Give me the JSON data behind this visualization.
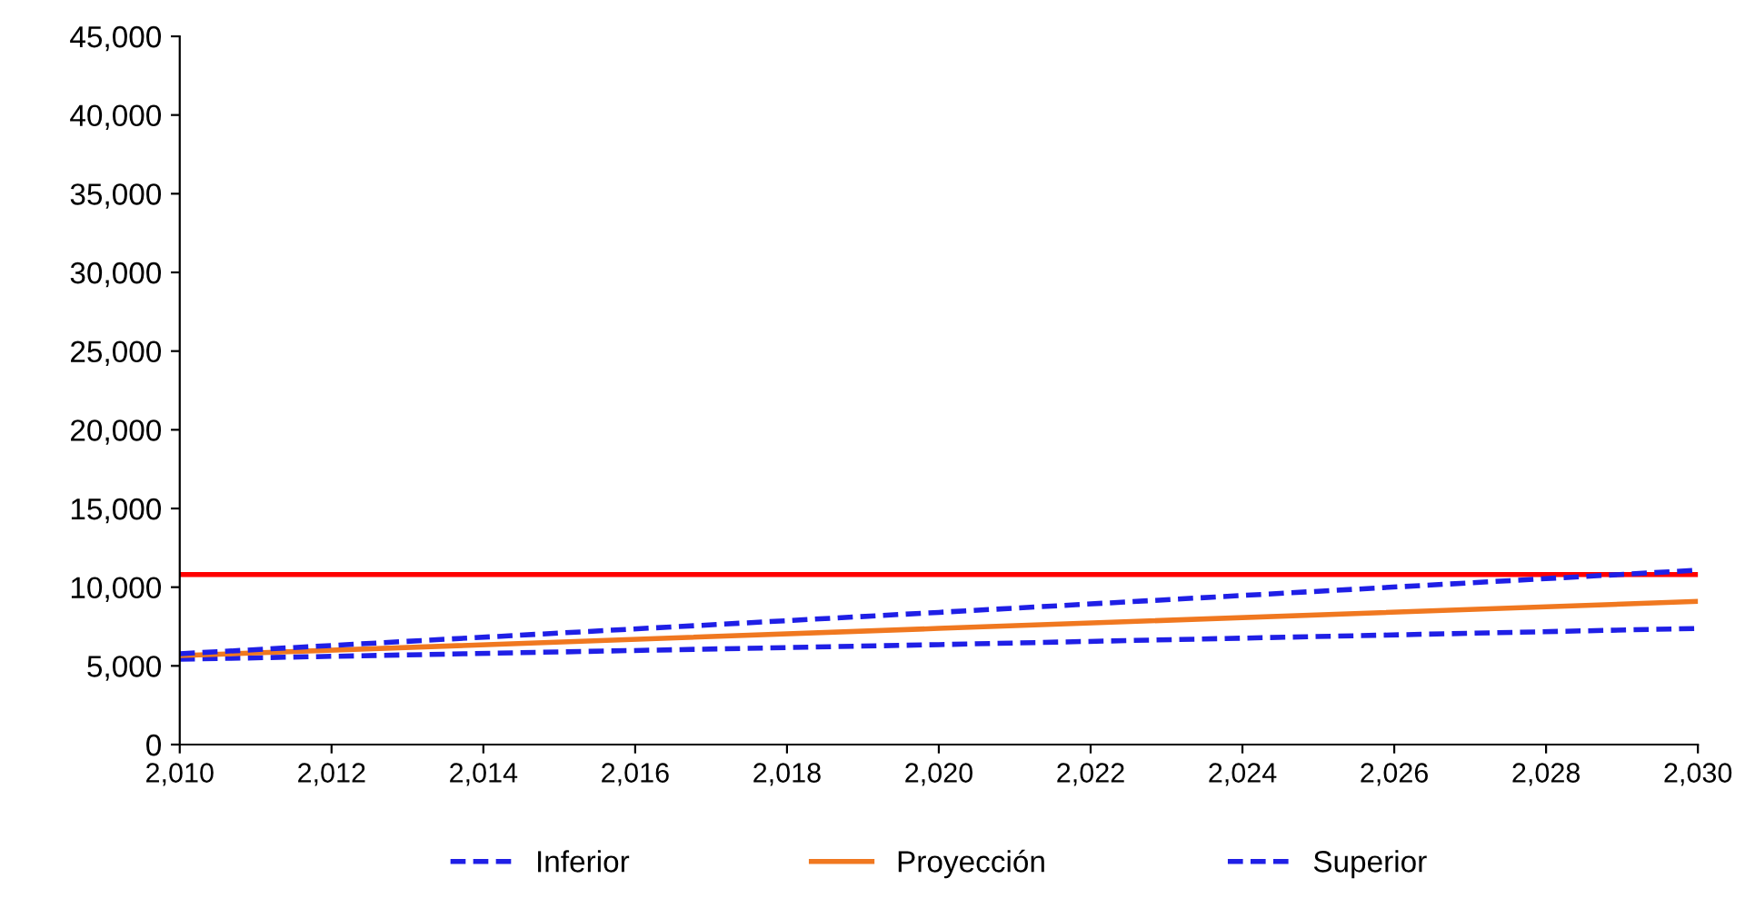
{
  "chart_data": {
    "type": "line",
    "x": [
      2010,
      2020,
      2030
    ],
    "series": [
      {
        "name": "Inferior",
        "color": "#1f1fe6",
        "line_style": "dashed",
        "values": [
          5420,
          6350,
          7380
        ]
      },
      {
        "name": "Proyección",
        "color": "#f07820",
        "line_style": "solid",
        "values": [
          5650,
          7380,
          9100
        ]
      },
      {
        "name": "Superior",
        "color": "#1f1fe6",
        "line_style": "dashed",
        "values": [
          5770,
          8400,
          11080
        ]
      }
    ],
    "ref_lines": [
      {
        "axis": "y",
        "value": 10800,
        "color": "#ff0000",
        "line_style": "solid"
      }
    ],
    "xlim": [
      2010,
      2030
    ],
    "xticks": [
      {
        "value": 2010,
        "label": "2,010"
      },
      {
        "value": 2012,
        "label": "2,012"
      },
      {
        "value": 2014,
        "label": "2,014"
      },
      {
        "value": 2016,
        "label": "2,016"
      },
      {
        "value": 2018,
        "label": "2,018"
      },
      {
        "value": 2020,
        "label": "2,020"
      },
      {
        "value": 2022,
        "label": "2,022"
      },
      {
        "value": 2024,
        "label": "2,024"
      },
      {
        "value": 2026,
        "label": "2,026"
      },
      {
        "value": 2028,
        "label": "2,028"
      },
      {
        "value": 2030,
        "label": "2,030"
      }
    ],
    "ylim": [
      0,
      45000
    ],
    "yticks": [
      0,
      {
        "value": 5000,
        "label": "5,000"
      },
      {
        "value": 10000,
        "label": "10,000"
      },
      {
        "value": 15000,
        "label": "15,000"
      },
      {
        "value": 20000,
        "label": "20,000"
      },
      {
        "value": 25000,
        "label": "25,000"
      },
      {
        "value": 30000,
        "label": "30,000"
      },
      {
        "value": 35000,
        "label": "35,000"
      },
      {
        "value": 40000,
        "label": "40,000"
      },
      {
        "value": 45000,
        "label": "45,000"
      }
    ],
    "grid": false,
    "legend": "bottom",
    "marker": "none"
  }
}
